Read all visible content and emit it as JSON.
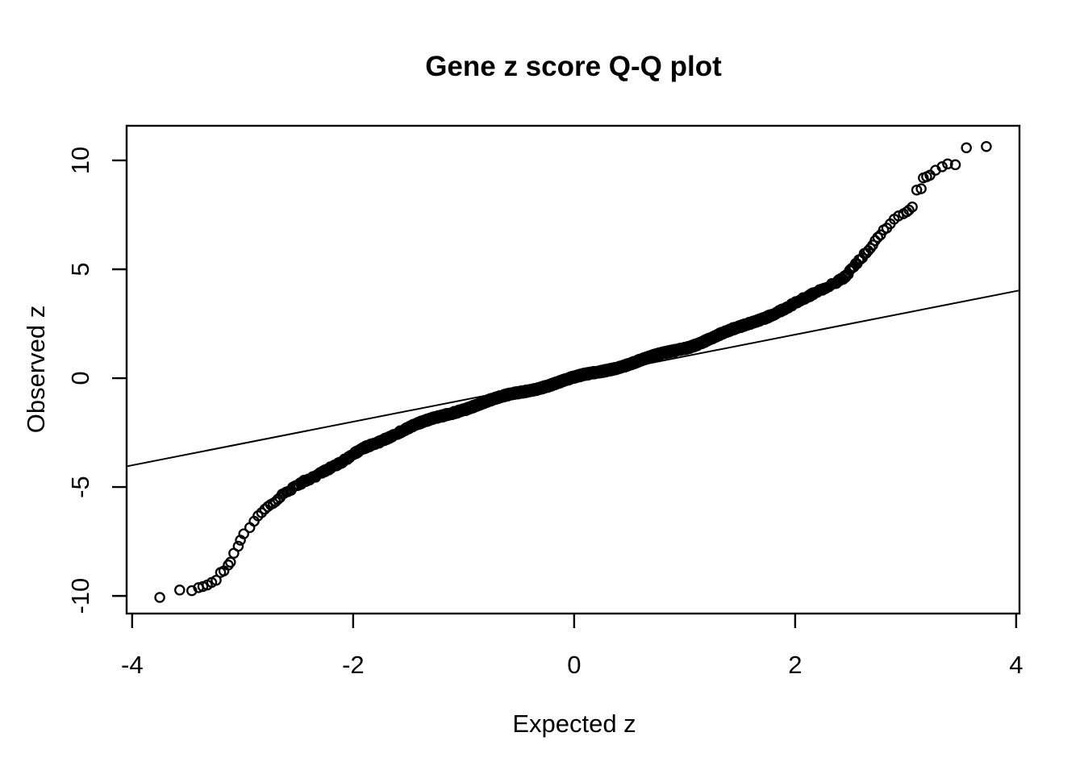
{
  "title": "Gene z score Q-Q plot",
  "chart_data": {
    "type": "scatter",
    "subtype": "qq-plot",
    "title": "Gene z score Q-Q plot",
    "xlabel": "Expected z",
    "ylabel": "Observed z",
    "xlim": [
      -4.05,
      4.03
    ],
    "ylim": [
      -10.81,
      11.59
    ],
    "x_ticks": [
      -4,
      -2,
      0,
      2,
      4
    ],
    "y_ticks": [
      -10,
      -5,
      0,
      5,
      10
    ],
    "grid": false,
    "legend": null,
    "marker": "open-circle",
    "colors": {
      "points": "#000000",
      "reference_line": "#000000",
      "background": "#ffffff",
      "text": "#000000"
    },
    "reference_line": {
      "slope": 1,
      "intercept": 0,
      "description": "identity line y = x"
    },
    "n_points_est": 4500,
    "curve_anchors": [
      [
        -3.77,
        -10.07
      ],
      [
        -3.46,
        -9.7
      ],
      [
        -3.24,
        -9.27
      ],
      [
        -3.13,
        -8.56
      ],
      [
        -3.05,
        -7.8
      ],
      [
        -2.96,
        -7.05
      ],
      [
        -2.89,
        -6.55
      ],
      [
        -2.8,
        -6.1
      ],
      [
        -2.7,
        -5.65
      ],
      [
        -2.58,
        -5.15
      ],
      [
        -2.45,
        -4.7
      ],
      [
        -2.3,
        -4.35
      ],
      [
        -2.1,
        -3.9
      ],
      [
        -1.9,
        -3.2
      ],
      [
        -1.7,
        -2.72
      ],
      [
        -1.5,
        -2.3
      ],
      [
        -1.3,
        -1.92
      ],
      [
        -1.05,
        -1.48
      ],
      [
        -0.8,
        -1.1
      ],
      [
        -0.55,
        -0.73
      ],
      [
        -0.3,
        -0.4
      ],
      [
        0,
        0
      ],
      [
        0.3,
        0.4
      ],
      [
        0.55,
        0.73
      ],
      [
        0.8,
        1.1
      ],
      [
        1.05,
        1.48
      ],
      [
        1.3,
        1.95
      ],
      [
        1.5,
        2.32
      ],
      [
        1.7,
        2.75
      ],
      [
        1.9,
        3.2
      ],
      [
        2.1,
        3.65
      ],
      [
        2.3,
        4.2
      ],
      [
        2.45,
        4.7
      ],
      [
        2.58,
        5.45
      ],
      [
        2.7,
        6.1
      ],
      [
        2.8,
        6.72
      ],
      [
        2.9,
        7.25
      ],
      [
        2.96,
        7.5
      ],
      [
        3.07,
        7.93
      ],
      [
        3.3,
        9.6
      ],
      [
        3.77,
        10.67
      ]
    ],
    "lower_tail_points": [
      [
        -3.75,
        -10.07
      ],
      [
        -3.57,
        -9.73
      ],
      [
        -3.46,
        -9.76
      ],
      [
        -3.4,
        -9.62
      ],
      [
        -3.36,
        -9.57
      ],
      [
        -3.32,
        -9.5
      ],
      [
        -3.28,
        -9.38
      ],
      [
        -3.24,
        -9.28
      ],
      [
        -3.2,
        -8.92
      ],
      [
        -3.17,
        -8.85
      ],
      [
        -3.13,
        -8.58
      ],
      [
        -3.11,
        -8.45
      ],
      [
        -3.08,
        -8.04
      ],
      [
        -3.04,
        -7.72
      ],
      [
        -3.02,
        -7.44
      ],
      [
        -2.99,
        -7.15
      ]
    ],
    "upper_tail_points": [
      [
        2.98,
        7.55
      ],
      [
        3.01,
        7.64
      ],
      [
        3.03,
        7.72
      ],
      [
        3.06,
        7.86
      ],
      [
        3.1,
        8.64
      ],
      [
        3.14,
        8.7
      ],
      [
        3.16,
        9.2
      ],
      [
        3.19,
        9.25
      ],
      [
        3.22,
        9.32
      ],
      [
        3.27,
        9.55
      ],
      [
        3.33,
        9.71
      ],
      [
        3.38,
        9.84
      ],
      [
        3.45,
        9.8
      ],
      [
        3.55,
        10.58
      ],
      [
        3.73,
        10.64
      ]
    ]
  }
}
